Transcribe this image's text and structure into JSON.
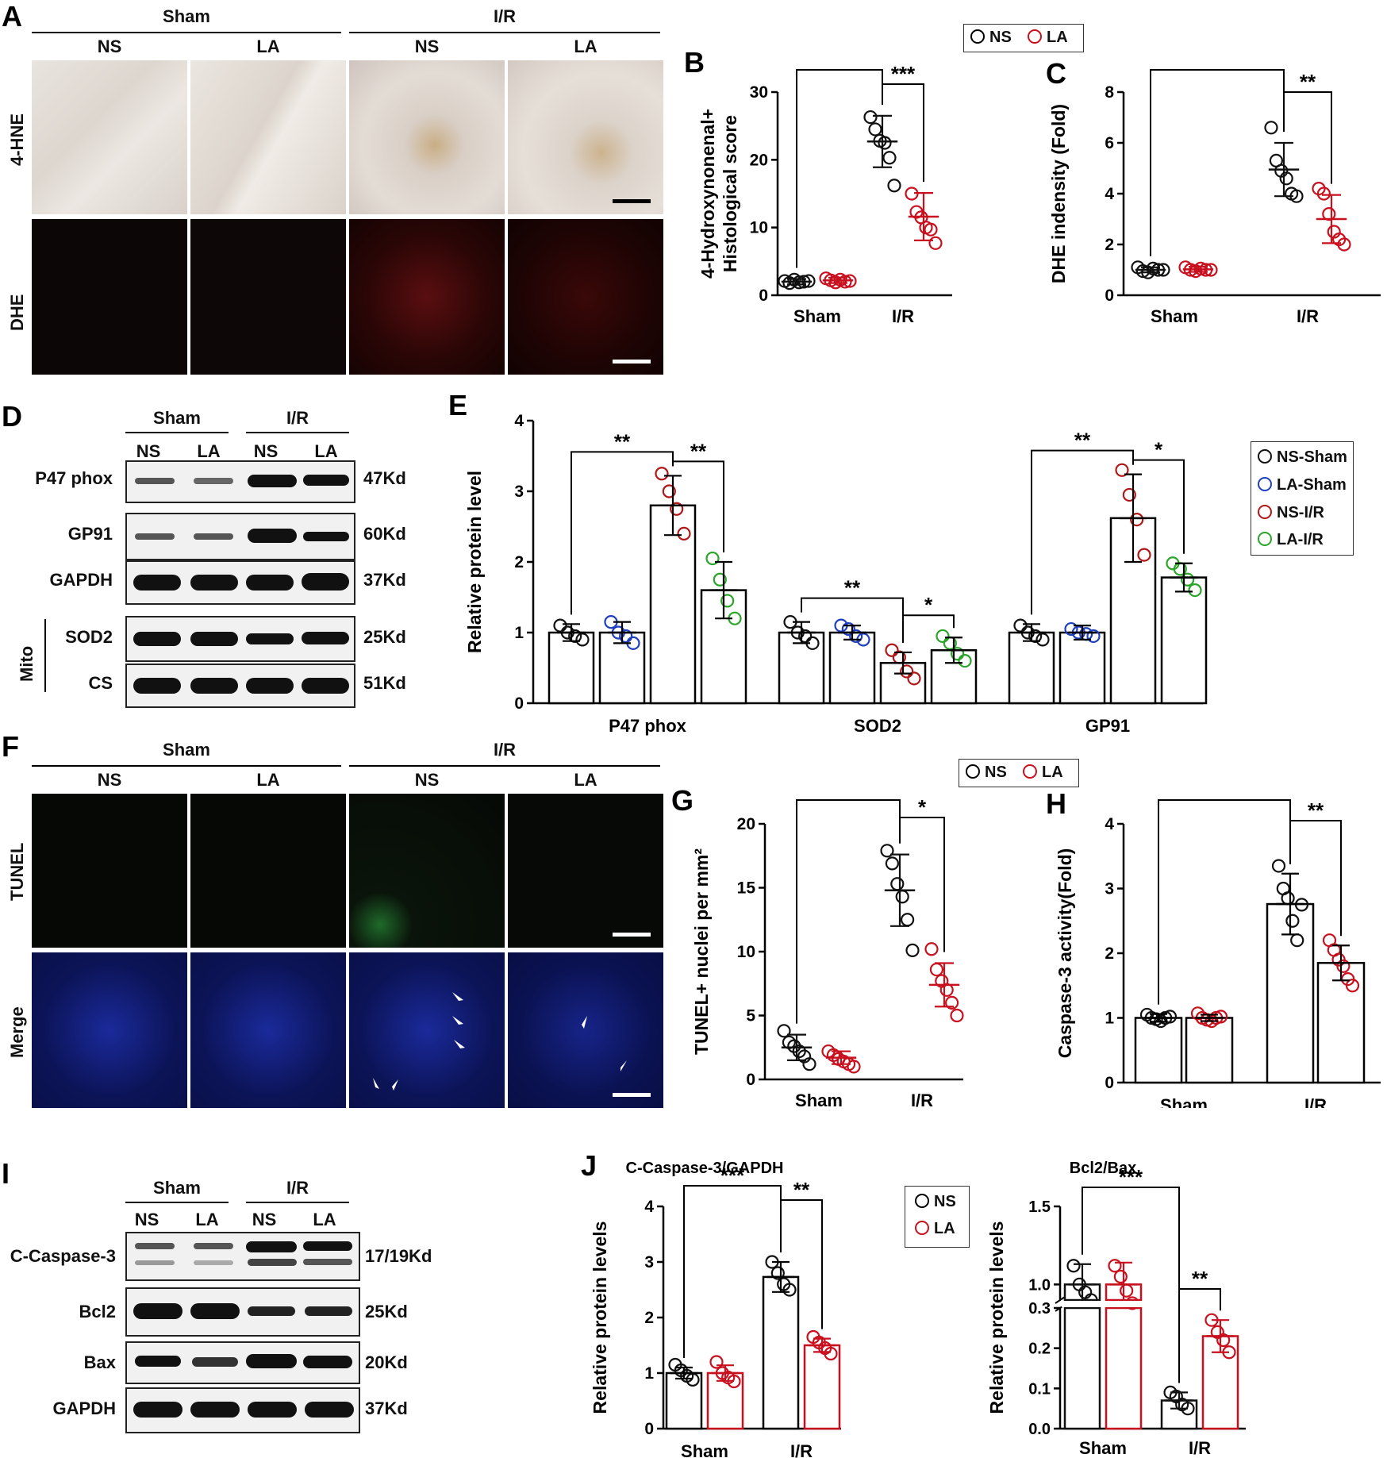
{
  "panels": {
    "A": "A",
    "B": "B",
    "C": "C",
    "D": "D",
    "E": "E",
    "F": "F",
    "G": "G",
    "H": "H",
    "I": "I",
    "J": "J"
  },
  "micro_a": {
    "group_sham": "Sham",
    "group_ir": "I/R",
    "cols": [
      "NS",
      "LA",
      "NS",
      "LA"
    ],
    "rows": [
      "4-HNE",
      "DHE"
    ]
  },
  "micro_f": {
    "group_sham": "Sham",
    "group_ir": "I/R",
    "cols": [
      "NS",
      "LA",
      "NS",
      "LA"
    ],
    "rows": [
      "TUNEL",
      "Merge"
    ]
  },
  "legend_ns_la": {
    "ns": "NS",
    "la": "LA"
  },
  "legend_e": [
    "NS-Sham",
    "LA-Sham",
    "NS-I/R",
    "LA-I/R"
  ],
  "colors": {
    "ns": "#111111",
    "la": "#c8101e",
    "la_sham": "#1f3fbf",
    "la_ir": "#2aa52a",
    "ns_ir": "#b01818"
  },
  "blot_d": {
    "group_sham": "Sham",
    "group_ir": "I/R",
    "cols": [
      "NS",
      "LA",
      "NS",
      "LA"
    ],
    "mito": "Mito",
    "rows": [
      {
        "label": "P47 phox",
        "kd": "47Kd"
      },
      {
        "label": "GP91",
        "kd": "60Kd"
      },
      {
        "label": "GAPDH",
        "kd": "37Kd"
      },
      {
        "label": "SOD2",
        "kd": "25Kd"
      },
      {
        "label": "CS",
        "kd": "51Kd"
      }
    ]
  },
  "blot_i": {
    "group_sham": "Sham",
    "group_ir": "I/R",
    "cols": [
      "NS",
      "LA",
      "NS",
      "LA"
    ],
    "rows": [
      {
        "label": "C-Caspase-3",
        "kd": "17/19Kd"
      },
      {
        "label": "Bcl2",
        "kd": "25Kd"
      },
      {
        "label": "Bax",
        "kd": "20Kd"
      },
      {
        "label": "GAPDH",
        "kd": "37Kd"
      }
    ]
  },
  "chart_data": [
    {
      "id": "B",
      "type": "scatter",
      "ylabel": "4-Hydroxynonenal+ Histological score",
      "ylim": [
        0,
        30
      ],
      "yticks": [
        0,
        10,
        20,
        30
      ],
      "categories": [
        "Sham",
        "I/R"
      ],
      "series": [
        {
          "name": "NS",
          "means": [
            2.0,
            22.7
          ],
          "sd": [
            0.4,
            3.8
          ],
          "points": [
            [
              2.1,
              1.8,
              2.3,
              1.9,
              2.0,
              2.1
            ],
            [
              26.3,
              24.5,
              22.8,
              22.5,
              20.3,
              16.2
            ]
          ]
        },
        {
          "name": "LA",
          "means": [
            2.2,
            11.6
          ],
          "sd": [
            0.4,
            3.5
          ],
          "points": [
            [
              2.5,
              2.2,
              1.9,
              2.3,
              2.0,
              2.1
            ],
            [
              15.0,
              12.3,
              11.5,
              10.0,
              9.7,
              7.7
            ]
          ]
        }
      ],
      "sig": [
        {
          "from": 0,
          "to": 2,
          "label": "***"
        },
        {
          "from": 2,
          "to": 3,
          "label": "***"
        }
      ]
    },
    {
      "id": "C",
      "type": "scatter",
      "ylabel": "DHE indensity (Fold)",
      "ylim": [
        0,
        8
      ],
      "yticks": [
        0,
        2,
        4,
        6,
        8
      ],
      "categories": [
        "Sham",
        "I/R"
      ],
      "series": [
        {
          "name": "NS",
          "means": [
            1.0,
            4.95
          ],
          "sd": [
            0.1,
            1.05
          ],
          "points": [
            [
              1.1,
              0.95,
              0.9,
              1.05,
              1.0,
              1.0
            ],
            [
              6.6,
              5.3,
              4.9,
              4.6,
              4.0,
              3.9
            ]
          ]
        },
        {
          "name": "LA",
          "means": [
            1.02,
            3.0
          ],
          "sd": [
            0.1,
            0.95
          ],
          "points": [
            [
              1.1,
              1.0,
              0.95,
              1.05,
              1.0,
              1.0
            ],
            [
              4.2,
              4.0,
              3.2,
              2.5,
              2.2,
              2.0
            ]
          ]
        }
      ],
      "sig": [
        {
          "from": 0,
          "to": 2,
          "label": "***"
        },
        {
          "from": 2,
          "to": 3,
          "label": "**"
        }
      ]
    },
    {
      "id": "E",
      "type": "bar",
      "ylabel": "Relative protein level",
      "ylim": [
        0,
        4
      ],
      "yticks": [
        0,
        1,
        2,
        3,
        4
      ],
      "categories": [
        "P47 phox",
        "SOD2",
        "GP91"
      ],
      "series": [
        {
          "name": "NS-Sham",
          "values": [
            1.0,
            1.0,
            1.0
          ],
          "sd": [
            0.12,
            0.15,
            0.12
          ],
          "points": [
            [
              1.1,
              1.0,
              0.95,
              0.9
            ],
            [
              1.15,
              1.0,
              0.95,
              0.85
            ],
            [
              1.1,
              1.0,
              0.95,
              0.9
            ]
          ]
        },
        {
          "name": "LA-Sham",
          "values": [
            1.0,
            1.0,
            1.0
          ],
          "sd": [
            0.15,
            0.1,
            0.1
          ],
          "points": [
            [
              1.15,
              1.0,
              0.95,
              0.85
            ],
            [
              1.1,
              1.05,
              0.95,
              0.9
            ],
            [
              1.05,
              1.0,
              0.98,
              0.95
            ]
          ]
        },
        {
          "name": "NS-I/R",
          "values": [
            2.8,
            0.57,
            2.62
          ],
          "sd": [
            0.42,
            0.15,
            0.62
          ],
          "points": [
            [
              3.25,
              3.0,
              2.75,
              2.4
            ],
            [
              0.75,
              0.65,
              0.45,
              0.35
            ],
            [
              3.3,
              2.95,
              2.6,
              2.1
            ]
          ]
        },
        {
          "name": "LA-I/R",
          "values": [
            1.6,
            0.75,
            1.78
          ],
          "sd": [
            0.4,
            0.18,
            0.2
          ],
          "points": [
            [
              2.05,
              1.75,
              1.45,
              1.2
            ],
            [
              0.95,
              0.85,
              0.7,
              0.6
            ],
            [
              1.98,
              1.9,
              1.75,
              1.6
            ]
          ]
        }
      ],
      "sig": [
        {
          "cat": 0,
          "pairs": [
            [
              0,
              2,
              "**"
            ],
            [
              2,
              3,
              "**"
            ]
          ]
        },
        {
          "cat": 1,
          "pairs": [
            [
              0,
              2,
              "**"
            ],
            [
              2,
              3,
              "*"
            ]
          ]
        },
        {
          "cat": 2,
          "pairs": [
            [
              0,
              2,
              "**"
            ],
            [
              2,
              3,
              "*"
            ]
          ]
        }
      ]
    },
    {
      "id": "G",
      "type": "scatter",
      "ylabel": "TUNEL+ nuclei per mm²",
      "ylim": [
        0,
        20
      ],
      "yticks": [
        0,
        5,
        10,
        15,
        20
      ],
      "categories": [
        "Sham",
        "I/R"
      ],
      "series": [
        {
          "name": "NS",
          "means": [
            2.5,
            14.8
          ],
          "sd": [
            1.0,
            2.8
          ],
          "points": [
            [
              3.8,
              2.9,
              2.6,
              2.2,
              1.8,
              1.2
            ],
            [
              17.9,
              16.9,
              15.3,
              14.3,
              12.5,
              10.1
            ]
          ]
        },
        {
          "name": "LA",
          "means": [
            1.7,
            7.4
          ],
          "sd": [
            0.5,
            1.7
          ],
          "points": [
            [
              2.2,
              1.9,
              1.6,
              1.4,
              1.2,
              1.0
            ],
            [
              10.2,
              8.6,
              7.7,
              7.0,
              6.0,
              5.0
            ]
          ]
        }
      ],
      "sig": [
        {
          "from": 0,
          "to": 2,
          "label": "***"
        },
        {
          "from": 2,
          "to": 3,
          "label": "*"
        }
      ]
    },
    {
      "id": "H",
      "type": "bar",
      "ylabel": "Caspase-3 activity(Fold)",
      "ylim": [
        0,
        4
      ],
      "yticks": [
        0,
        1,
        2,
        3,
        4
      ],
      "categories": [
        "Sham",
        "I/R"
      ],
      "series": [
        {
          "name": "NS",
          "values": [
            1.0,
            2.76
          ],
          "sd": [
            0.06,
            0.47
          ],
          "points": [
            [
              1.05,
              1.0,
              0.98,
              0.95,
              1.0,
              1.02
            ],
            [
              3.35,
              3.0,
              2.85,
              2.5,
              2.2,
              2.75
            ]
          ]
        },
        {
          "name": "LA",
          "values": [
            1.0,
            1.85
          ],
          "sd": [
            0.05,
            0.27
          ],
          "points": [
            [
              1.07,
              1.0,
              0.97,
              0.95,
              1.0,
              1.02
            ],
            [
              2.2,
              2.05,
              1.9,
              1.8,
              1.6,
              1.5
            ]
          ]
        }
      ],
      "sig": [
        {
          "from": 0,
          "to": 2,
          "label": "***"
        },
        {
          "from": 2,
          "to": 3,
          "label": "**"
        }
      ]
    },
    {
      "id": "J1",
      "type": "bar",
      "title": "C-Caspase-3/GAPDH",
      "ylabel": "Relative protein levels",
      "ylim": [
        0,
        4
      ],
      "yticks": [
        0,
        1,
        2,
        3,
        4
      ],
      "categories": [
        "Sham",
        "I/R"
      ],
      "series": [
        {
          "name": "NS",
          "values": [
            1.0,
            2.73
          ],
          "sd": [
            0.1,
            0.27
          ],
          "points": [
            [
              1.15,
              1.05,
              0.95,
              0.88
            ],
            [
              3.0,
              2.8,
              2.6,
              2.5
            ]
          ]
        },
        {
          "name": "LA",
          "values": [
            1.0,
            1.5
          ],
          "sd": [
            0.14,
            0.12
          ],
          "points": [
            [
              1.2,
              1.0,
              0.92,
              0.85
            ],
            [
              1.65,
              1.55,
              1.45,
              1.35
            ]
          ]
        }
      ],
      "sig": [
        {
          "from": 0,
          "to": 2,
          "label": "***"
        },
        {
          "from": 2,
          "to": 3,
          "label": "**"
        }
      ]
    },
    {
      "id": "J2",
      "type": "bar",
      "title": "Bcl2/Bax",
      "ylabel": "Relative protein levels",
      "broken_axis": true,
      "yticks": [
        0.0,
        0.1,
        0.2,
        0.3,
        1.0,
        1.5
      ],
      "categories": [
        "Sham",
        "I/R"
      ],
      "series": [
        {
          "name": "NS",
          "values": [
            1.0,
            0.07
          ],
          "sd": [
            0.13,
            0.02
          ],
          "points": [
            [
              1.12,
              1.0,
              0.95,
              0.9
            ],
            [
              0.09,
              0.08,
              0.06,
              0.05
            ]
          ]
        },
        {
          "name": "LA",
          "values": [
            1.0,
            0.23
          ],
          "sd": [
            0.14,
            0.04
          ],
          "points": [
            [
              1.12,
              1.05,
              0.96,
              0.88
            ],
            [
              0.27,
              0.24,
              0.22,
              0.19
            ]
          ]
        }
      ],
      "sig": [
        {
          "from": 0,
          "to": 2,
          "label": "***"
        },
        {
          "from": 2,
          "to": 3,
          "label": "**"
        }
      ]
    }
  ],
  "axes": {
    "B": {
      "cat0": "Sham",
      "cat1": "I/R"
    },
    "C": {
      "cat0": "Sham",
      "cat1": "I/R"
    },
    "G": {
      "cat0": "Sham",
      "cat1": "I/R"
    },
    "H": {
      "cat0": "Sham",
      "cat1": "I/R"
    },
    "J1": {
      "cat0": "Sham",
      "cat1": "I/R"
    },
    "J2": {
      "cat0": "Sham",
      "cat1": "I/R"
    }
  },
  "E_xlabels": [
    "P47 phox",
    "SOD2",
    "GP91"
  ]
}
